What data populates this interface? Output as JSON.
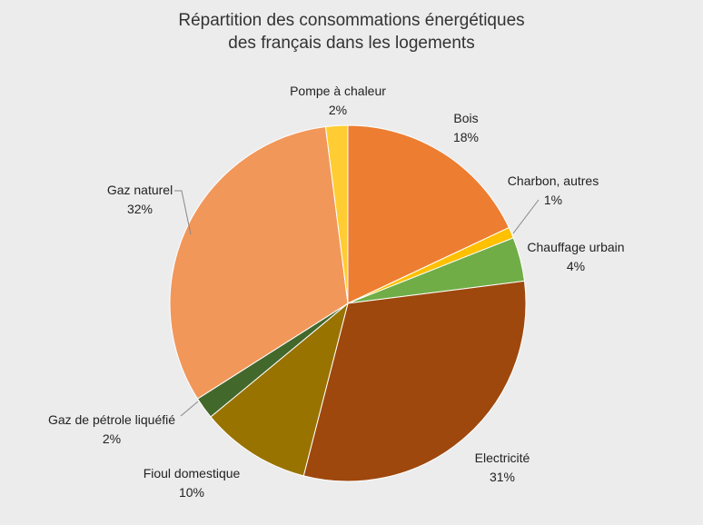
{
  "chart_data": {
    "type": "pie",
    "title_lines": [
      "Répartition des consommations énergétiques",
      "des français dans les logements"
    ],
    "start_angle_deg": 0,
    "direction": "clockwise",
    "legend": "none",
    "slices": [
      {
        "label": "Bois",
        "value": 18,
        "value_label": "18%",
        "color": "#ed7d31"
      },
      {
        "label": "Charbon, autres",
        "value": 1,
        "value_label": "1%",
        "color": "#ffc000"
      },
      {
        "label": "Chauffage urbain",
        "value": 4,
        "value_label": "4%",
        "color": "#70ad47"
      },
      {
        "label": "Electricité",
        "value": 31,
        "value_label": "31%",
        "color": "#9e480e"
      },
      {
        "label": "Fioul domestique",
        "value": 10,
        "value_label": "10%",
        "color": "#997300"
      },
      {
        "label": "Gaz de pétrole liquéfié",
        "value": 2,
        "value_label": "2%",
        "color": "#43682b"
      },
      {
        "label": "Gaz naturel",
        "value": 32,
        "value_label": "32%",
        "color": "#f1975a"
      },
      {
        "label": "Pompe à chaleur",
        "value": 2,
        "value_label": "2%",
        "color": "#ffcd33"
      }
    ]
  }
}
